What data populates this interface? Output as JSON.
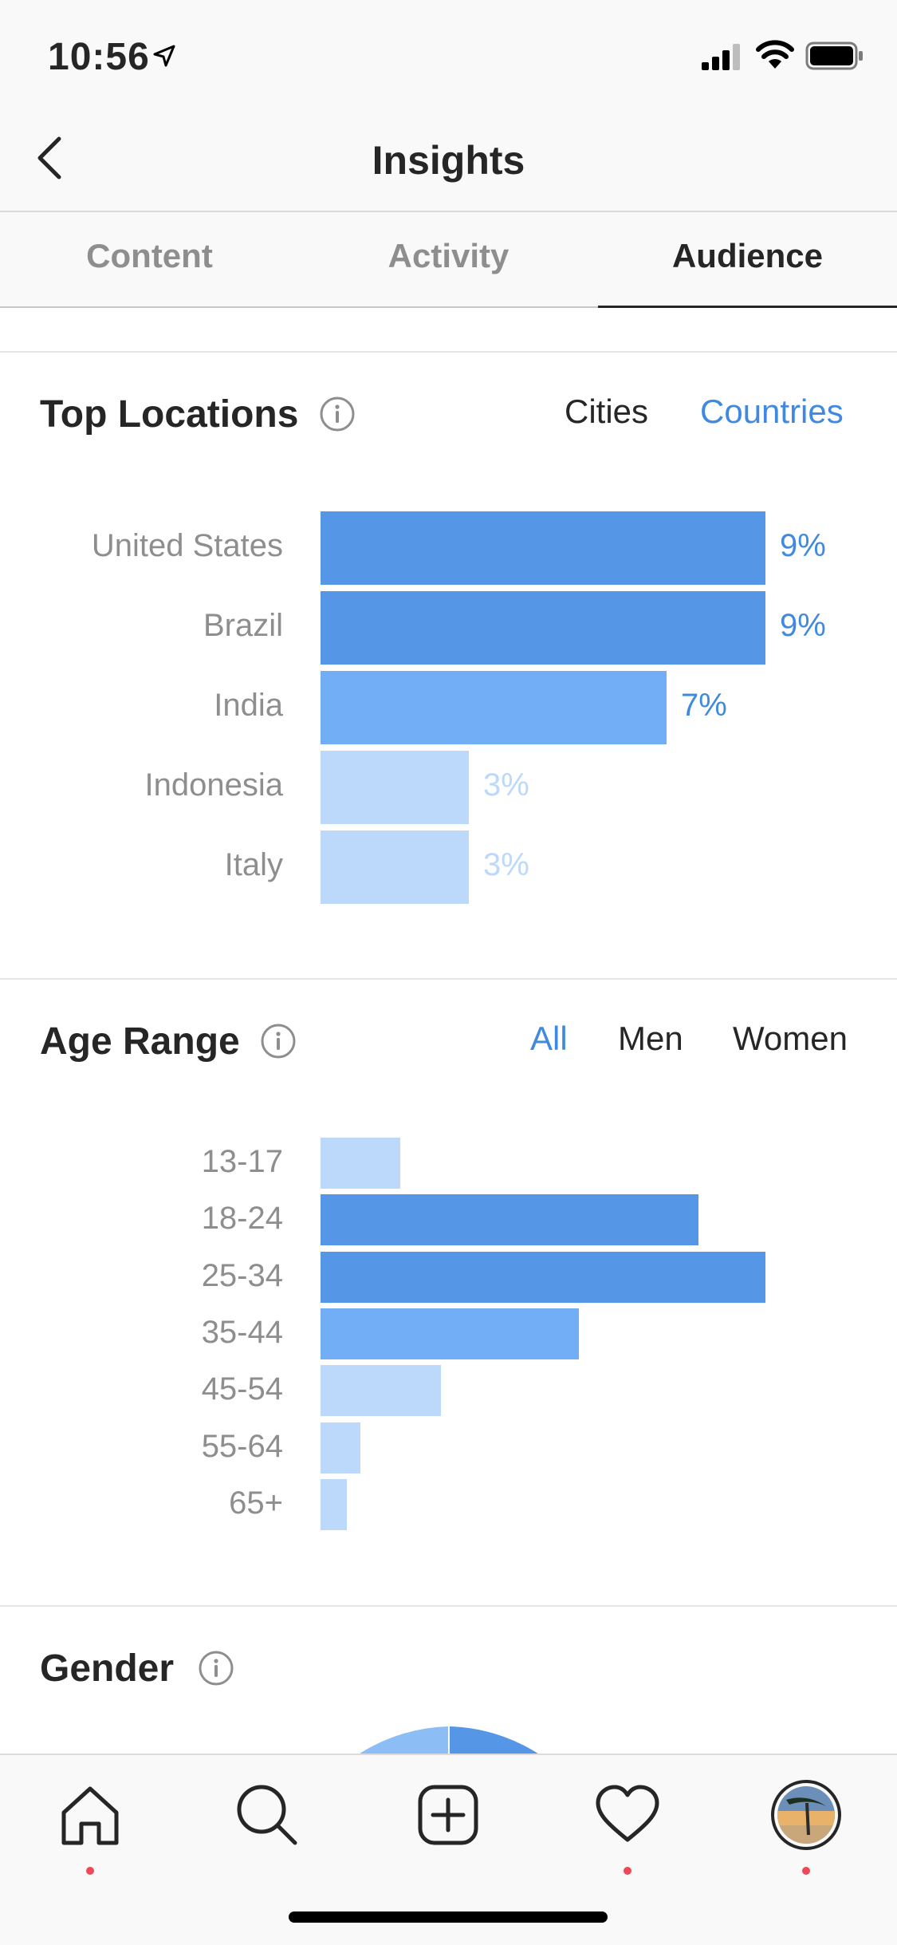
{
  "status_bar": {
    "time": "10:56"
  },
  "nav": {
    "title": "Insights"
  },
  "tabs": [
    {
      "label": "Content",
      "active": false
    },
    {
      "label": "Activity",
      "active": false
    },
    {
      "label": "Audience",
      "active": true
    }
  ],
  "top_locations": {
    "title": "Top Locations",
    "toggles": [
      {
        "label": "Cities",
        "active": false
      },
      {
        "label": "Countries",
        "active": true
      }
    ]
  },
  "age_range": {
    "title": "Age Range",
    "toggles": [
      {
        "label": "All",
        "active": true
      },
      {
        "label": "Men",
        "active": false
      },
      {
        "label": "Women",
        "active": false
      }
    ]
  },
  "gender": {
    "title": "Gender"
  },
  "colors": {
    "bar_dark": "#5597e6",
    "bar_mid": "#72aef5",
    "bar_light": "#bcd8fb",
    "accent": "#3f8ae0",
    "gender_light": "#8cbdf4",
    "badge_red": "#ed4956"
  },
  "chart_data": [
    {
      "type": "bar",
      "orientation": "horizontal",
      "categories": [
        "United States",
        "Brazil",
        "India",
        "Indonesia",
        "Italy"
      ],
      "values": [
        9,
        9,
        7,
        3,
        3
      ],
      "value_labels": [
        "9%",
        "9%",
        "7%",
        "3%",
        "3%"
      ],
      "xlim": [
        0,
        9
      ]
    },
    {
      "type": "bar",
      "orientation": "horizontal",
      "categories": [
        "13-17",
        "18-24",
        "25-34",
        "35-44",
        "45-54",
        "55-64",
        "65+"
      ],
      "values": [
        0.18,
        0.85,
        1.0,
        0.58,
        0.27,
        0.09,
        0.06
      ]
    }
  ],
  "bottom_tabs": [
    {
      "icon": "home-icon",
      "badge": true
    },
    {
      "icon": "search-icon",
      "badge": false
    },
    {
      "icon": "add-post-icon",
      "badge": false
    },
    {
      "icon": "heart-icon",
      "badge": true
    },
    {
      "icon": "profile-avatar",
      "badge": true
    }
  ]
}
